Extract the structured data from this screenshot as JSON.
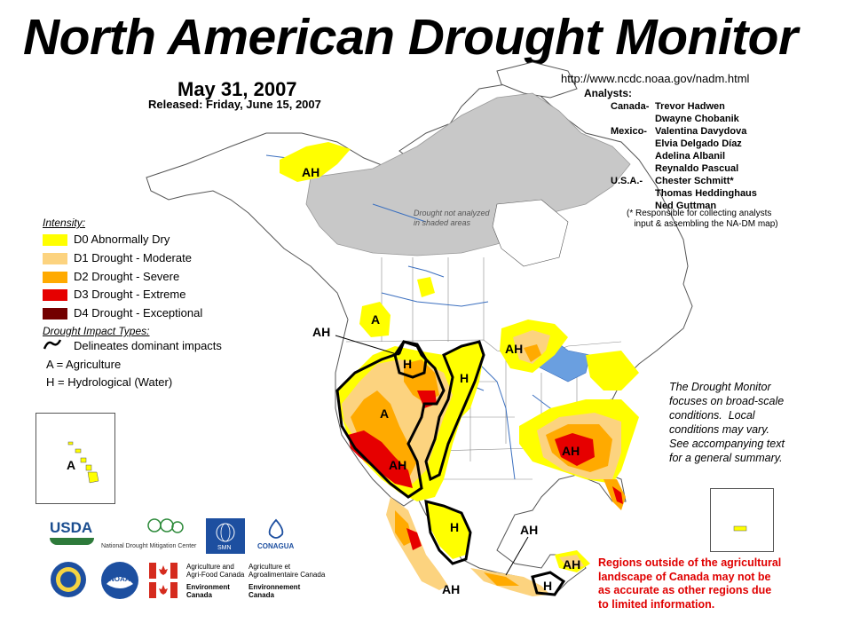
{
  "title": "North American Drought Monitor",
  "date": "May 31, 2007",
  "released": "Released: Friday, June 15, 2007",
  "url": "http://www.ncdc.noaa.gov/nadm.html",
  "analysts": {
    "heading": "Analysts:",
    "groups": [
      {
        "country": "Canada-",
        "names": [
          "Trevor Hadwen",
          "Dwayne Chobanik"
        ]
      },
      {
        "country": "Mexico-",
        "names": [
          "Valentina Davydova",
          "Elvia Delgado Díaz",
          "Adelina Albanil",
          "Reynaldo Pascual"
        ]
      },
      {
        "country": "U.S.A.-",
        "names": [
          "Chester Schmitt*",
          "Thomas Heddinghaus",
          "Ned Guttman"
        ]
      }
    ],
    "note": "(* Responsible for collecting analysts\n   input & assembling the NA-DM map)"
  },
  "legend": {
    "intensity_heading": "Intensity:",
    "items": [
      {
        "label": "D0 Abnormally Dry",
        "color": "#ffff00"
      },
      {
        "label": "D1 Drought - Moderate",
        "color": "#fcd37f"
      },
      {
        "label": "D2 Drought - Severe",
        "color": "#ffaa00"
      },
      {
        "label": "D3 Drought - Extreme",
        "color": "#e60000"
      },
      {
        "label": "D4 Drought - Exceptional",
        "color": "#730000"
      }
    ],
    "impact_heading": "Drought Impact Types:",
    "impact_items": [
      {
        "label": "Delineates dominant impacts"
      },
      {
        "label": "A = Agriculture"
      },
      {
        "label": "H = Hydrological (Water)"
      }
    ]
  },
  "notes": {
    "shaded": "Drought not analyzed\nin shaded areas",
    "monitor": "The Drought Monitor\nfocuses on broad-scale\nconditions.  Local\nconditions may vary.\nSee accompanying text\nfor a general summary.",
    "regions": "Regions outside of the agricultural\nlandscape of Canada may not be\nas accurate as other regions due\nto limited information."
  },
  "map_labels": {
    "ah_alaska": "AH",
    "a_canada": "A",
    "ah_pointer": "AH",
    "h_montana": "H",
    "h_plains": "H",
    "a_west": "A",
    "ah_southwest": "AH",
    "ah_greatlakes": "AH",
    "ah_southeast": "AH",
    "h_mexico_north": "H",
    "ah_mexico_pointer": "AH",
    "ah_yucatan": "AH",
    "h_mexico_south": "H",
    "ah_mexico_bottom": "AH",
    "a_hawaii": "A"
  },
  "logos": {
    "usda": "USDA",
    "ndmc": "National Drought Mitigation Center",
    "smn": "SMN",
    "conagua": "CONAGUA",
    "noaa": "NOAA",
    "agriculture_en": "Agriculture and\nAgri-Food Canada",
    "agriculture_fr": "Agriculture et\nAgroalimentaire Canada",
    "environment_en": "Environment\nCanada",
    "environment_fr": "Environnement\nCanada"
  },
  "colors": {
    "ocean": "#ffffff",
    "land": "#ffffff",
    "shaded": "#c8c8c8",
    "water": "#6a9fe0",
    "border": "#7a7a7a"
  }
}
